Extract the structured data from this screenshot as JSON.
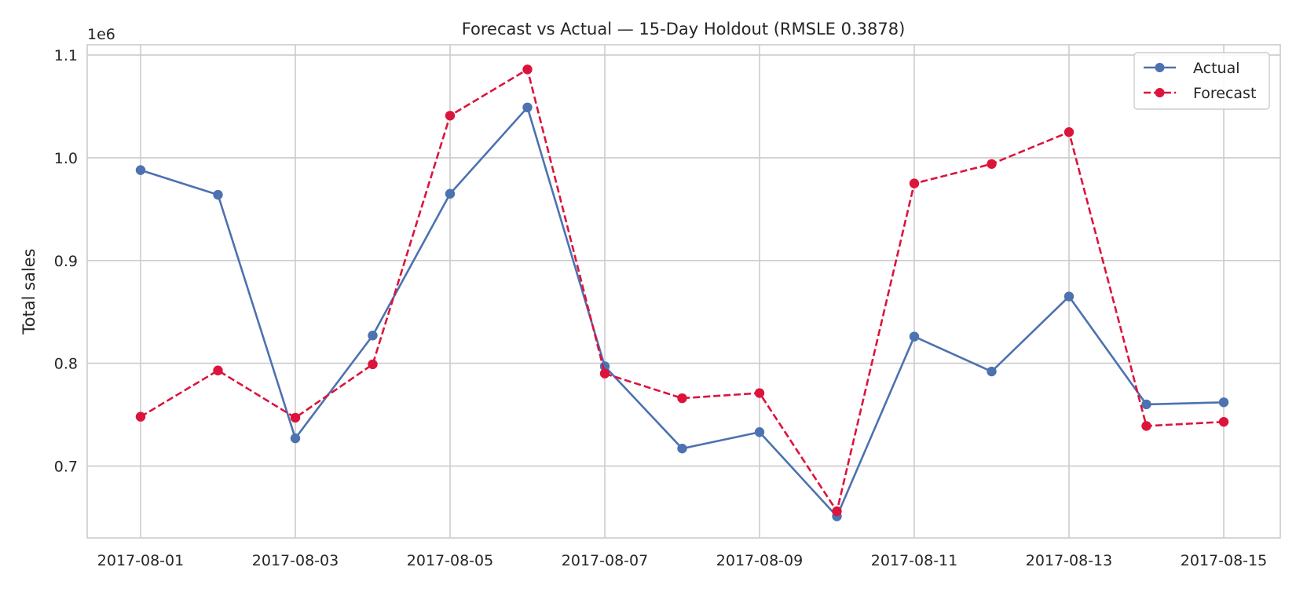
{
  "chart_data": {
    "type": "line",
    "title": "Forecast vs Actual — 15-Day Holdout (RMSLE 0.3878)",
    "xlabel": "",
    "ylabel": "Total sales",
    "y_offset_label": "1e6",
    "x": [
      "2017-08-01",
      "2017-08-02",
      "2017-08-03",
      "2017-08-04",
      "2017-08-05",
      "2017-08-06",
      "2017-08-07",
      "2017-08-08",
      "2017-08-09",
      "2017-08-10",
      "2017-08-11",
      "2017-08-12",
      "2017-08-13",
      "2017-08-14",
      "2017-08-15"
    ],
    "x_tick_labels": [
      "2017-08-01",
      "2017-08-03",
      "2017-08-05",
      "2017-08-07",
      "2017-08-09",
      "2017-08-11",
      "2017-08-13",
      "2017-08-15"
    ],
    "y_tick_values": [
      0.7,
      0.8,
      0.9,
      1.0,
      1.1
    ],
    "y_tick_labels": [
      "0.7",
      "0.8",
      "0.9",
      "1.0",
      "1.1"
    ],
    "ylim": [
      0.63,
      1.11
    ],
    "grid": true,
    "legend_position": "top-right",
    "series": [
      {
        "name": "Actual",
        "color": "#4c72b0",
        "style": "solid",
        "marker": "circle",
        "values": [
          0.988,
          0.964,
          0.727,
          0.827,
          0.965,
          1.049,
          0.797,
          0.717,
          0.733,
          0.651,
          0.826,
          0.792,
          0.865,
          0.76,
          0.762
        ]
      },
      {
        "name": "Forecast",
        "color": "#dc143c",
        "style": "dashed",
        "marker": "circle",
        "values": [
          0.748,
          0.793,
          0.747,
          0.799,
          1.041,
          1.086,
          0.79,
          0.766,
          0.771,
          0.656,
          0.975,
          0.994,
          1.025,
          0.739,
          0.743
        ]
      }
    ]
  }
}
